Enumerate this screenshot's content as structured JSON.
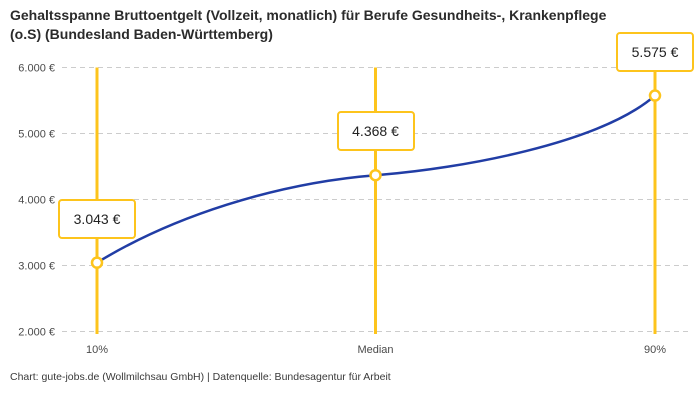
{
  "header": {
    "title": "Gehaltsspanne Bruttoentgelt (Vollzeit, monatlich) für Berufe Gesundheits-, Krankenpflege (o.S) (Bundesland Baden-Württemberg)"
  },
  "footer": {
    "credit": "Chart: gute-jobs.de (Wollmilchsau GmbH) | Datenquelle: Bundesagentur für Arbeit"
  },
  "colors": {
    "accent_yellow": "#FDC41C",
    "line_blue": "#213DA5",
    "grid_gray": "#CCCCCC",
    "text_dark": "#2B2B2B",
    "axis_text": "#4A4A4A"
  },
  "chart_data": {
    "type": "line",
    "title": "Gehaltsspanne Bruttoentgelt (Vollzeit, monatlich) für Berufe Gesundheits-, Krankenpflege (o.S) (Bundesland Baden-Württemberg)",
    "categories": [
      "10%",
      "Median",
      "90%"
    ],
    "values": [
      3043,
      4368,
      5575
    ],
    "value_labels": [
      "3.043 €",
      "4.368 €",
      "5.575 €"
    ],
    "series": [
      {
        "name": "Bruttoentgelt",
        "values": [
          3043,
          4368,
          5575
        ]
      }
    ],
    "xlabel": "",
    "ylabel": "",
    "ylim": [
      2000,
      6000
    ],
    "yticks": [
      2000,
      3000,
      4000,
      5000,
      6000
    ],
    "ytick_labels": [
      "2.000 €",
      "3.000 €",
      "4.000 €",
      "5.000 €",
      "6.000 €"
    ],
    "grid": "horizontal-dashed",
    "legend": "none",
    "annotations": "vertical percentile marker lines at each category with boxed value labels above each data point"
  }
}
